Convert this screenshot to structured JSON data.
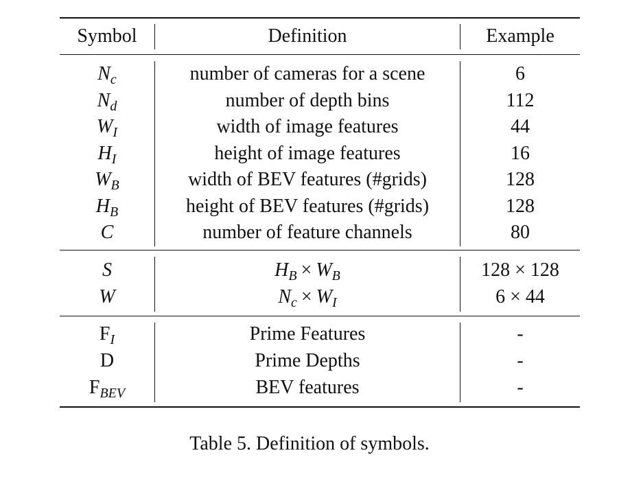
{
  "table": {
    "headers": [
      "Symbol",
      "Definition",
      "Example"
    ],
    "rows": [
      {
        "base": "N",
        "sub": "c",
        "def": "number of cameras for a scene",
        "ex": "6"
      },
      {
        "base": "N",
        "sub": "d",
        "def": "number of depth bins",
        "ex": "112"
      },
      {
        "base": "W",
        "sub": "I",
        "def": "width of image features",
        "ex": "44"
      },
      {
        "base": "H",
        "sub": "I",
        "def": "height of image features",
        "ex": "16"
      },
      {
        "base": "W",
        "sub": "B",
        "def": "width of BEV features (#grids)",
        "ex": "128"
      },
      {
        "base": "H",
        "sub": "B",
        "def": "height of BEV features (#grids)",
        "ex": "128"
      },
      {
        "base": "C",
        "sub": "",
        "def": "number of feature channels",
        "ex": "80"
      },
      {
        "base": "S",
        "sub": "",
        "def": {
          "a": "H",
          "a_sub": "B",
          "op": "×",
          "b": "W",
          "b_sub": "B"
        },
        "ex": "128 × 128"
      },
      {
        "base": "W",
        "sub": "",
        "def": {
          "a": "N",
          "a_sub": "c",
          "op": "×",
          "b": "W",
          "b_sub": "I"
        },
        "ex": "6 × 44"
      },
      {
        "base": "F",
        "sub": "I",
        "def": "Prime Features",
        "ex": "-"
      },
      {
        "base": "D",
        "sub": "",
        "def": "Prime Depths",
        "ex": "-"
      },
      {
        "base": "F",
        "sub": "BEV",
        "def": "BEV features",
        "ex": "-"
      }
    ]
  },
  "caption": "Table 5. Definition of symbols."
}
